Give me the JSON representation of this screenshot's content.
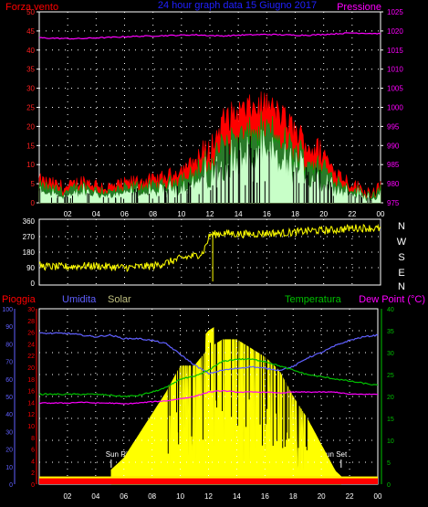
{
  "header": {
    "left": "Forza vento",
    "center": "24 hour graph data 15 Giugno 2017",
    "right": "Pressione"
  },
  "colors": {
    "wind": "#ff0000",
    "gust": "#00a000",
    "avg": "#c8ffc8",
    "pressure": "#ff00ff",
    "direction": "#ffff00",
    "humidity": "#6060ff",
    "temperature": "#00c000",
    "dewpoint": "#ff00ff",
    "solar": "#ffff00",
    "rain": "#ff0000",
    "grid": "#ffffff",
    "frame": "#ffffff",
    "axis": "#c0c0c0"
  },
  "x_ticks": [
    "02",
    "04",
    "06",
    "08",
    "10",
    "12",
    "14",
    "16",
    "18",
    "20",
    "22",
    "00"
  ],
  "panel1": {
    "wind_ticks": [
      "0",
      "5",
      "10",
      "15",
      "20",
      "25",
      "30",
      "35",
      "40",
      "45",
      "50"
    ],
    "pressure_ticks": [
      "975",
      "980",
      "985",
      "990",
      "995",
      "1000",
      "1005",
      "1010",
      "1015",
      "1020",
      "1025"
    ]
  },
  "panel2": {
    "dir_ticks": [
      "0",
      "90",
      "180",
      "270",
      "360"
    ],
    "compass": [
      "N",
      "W",
      "S",
      "E",
      "N"
    ]
  },
  "panel3": {
    "labels": {
      "rain": "Pioggia",
      "humidity": "Umidita",
      "solar": "Solar",
      "temperature": "Temperatura",
      "dewpoint": "Dew Point (°C)"
    },
    "humidity_ticks": [
      "0",
      "10",
      "20",
      "30",
      "40",
      "50",
      "60",
      "70",
      "80",
      "90",
      "100"
    ],
    "rain_ticks": [
      "0",
      "2",
      "4",
      "6",
      "8",
      "10",
      "12",
      "14",
      "16",
      "18",
      "20",
      "22",
      "24",
      "26",
      "28",
      "30"
    ],
    "temp_ticks": [
      "0",
      "5",
      "10",
      "15",
      "20",
      "25",
      "30",
      "35",
      "40"
    ],
    "sunrise": "Sun Rise",
    "sunset": "Sun Set"
  },
  "chart_data": [
    {
      "type": "line",
      "title": "24 hour graph data 15 Giugno 2017",
      "x": [
        0,
        1,
        2,
        3,
        4,
        5,
        6,
        7,
        8,
        9,
        10,
        11,
        12,
        13,
        14,
        15,
        16,
        17,
        18,
        19,
        20,
        21,
        22,
        23,
        24
      ],
      "series": [
        {
          "name": "Forza vento",
          "values": [
            5,
            4,
            3,
            5,
            4,
            3,
            4,
            5,
            5,
            6,
            8,
            10,
            12,
            20,
            22,
            23,
            24,
            21,
            17,
            13,
            11,
            7,
            4,
            2,
            3
          ]
        },
        {
          "name": "Pressione",
          "values": [
            1018.2,
            1018.1,
            1018.0,
            1018.0,
            1018.2,
            1018.3,
            1018.5,
            1018.6,
            1018.7,
            1018.8,
            1018.9,
            1019.0,
            1018.8,
            1018.7,
            1018.9,
            1019.0,
            1019.1,
            1019.0,
            1018.9,
            1018.9,
            1019.1,
            1019.3,
            1019.5,
            1019.4,
            1019.3
          ]
        }
      ],
      "ylim": [
        0,
        50
      ],
      "y2lim": [
        975,
        1025
      ]
    },
    {
      "type": "scatter",
      "x": [
        0,
        1,
        2,
        3,
        4,
        5,
        6,
        7,
        8,
        9,
        10,
        11,
        11.5,
        12,
        13,
        14,
        15,
        16,
        17,
        18,
        19,
        20,
        21,
        22,
        23,
        24
      ],
      "series": [
        {
          "name": "direction",
          "values": [
            100,
            95,
            95,
            100,
            100,
            95,
            90,
            95,
            100,
            120,
            145,
            160,
            175,
            280,
            290,
            285,
            285,
            290,
            290,
            295,
            305,
            305,
            310,
            320,
            320,
            315
          ]
        }
      ],
      "ylim": [
        0,
        360
      ]
    },
    {
      "type": "line",
      "x": [
        0,
        1,
        2,
        3,
        4,
        5,
        6,
        7,
        8,
        9,
        10,
        11,
        12,
        13,
        14,
        15,
        16,
        17,
        18,
        19,
        20,
        21,
        22,
        23,
        24
      ],
      "series": [
        {
          "name": "Umidita",
          "values": [
            86,
            86,
            86,
            85,
            84,
            85,
            83,
            83,
            82,
            80,
            74,
            68,
            63,
            65,
            66,
            67,
            66,
            65,
            67,
            72,
            75,
            79,
            82,
            84,
            85
          ]
        },
        {
          "name": "Temperatura",
          "values": [
            20.5,
            20.5,
            20.5,
            20.5,
            20.5,
            20.3,
            20.0,
            20.2,
            21.0,
            22.0,
            24.0,
            24.5,
            26.0,
            28.0,
            28.5,
            28.5,
            28.0,
            27.0,
            26.0,
            25.0,
            24.5,
            24.0,
            23.5,
            23.0,
            22.5
          ]
        },
        {
          "name": "Dew Point",
          "values": [
            18.5,
            18.5,
            18.5,
            18.7,
            18.5,
            18.5,
            18.3,
            18.5,
            18.8,
            19.0,
            19.5,
            20.0,
            21.0,
            21.3,
            21.0,
            21.0,
            21.0,
            20.8,
            21.0,
            21.0,
            21.0,
            21.0,
            20.5,
            20.5,
            20.5
          ]
        },
        {
          "name": "Solar",
          "values": [
            0,
            0,
            0,
            0,
            0,
            3,
            6,
            11,
            16,
            21,
            27,
            27,
            31,
            33,
            33,
            31,
            29,
            26,
            20,
            15,
            9,
            3,
            0,
            0,
            0
          ]
        },
        {
          "name": "Pioggia",
          "values": [
            1,
            1,
            1,
            1,
            1,
            1,
            1,
            1,
            1,
            1,
            1,
            1,
            1,
            1,
            1,
            1,
            1,
            1,
            1,
            1,
            1,
            1,
            1,
            1,
            1
          ]
        }
      ],
      "ylim": [
        0,
        100
      ],
      "y2lim": [
        0,
        40
      ]
    }
  ]
}
